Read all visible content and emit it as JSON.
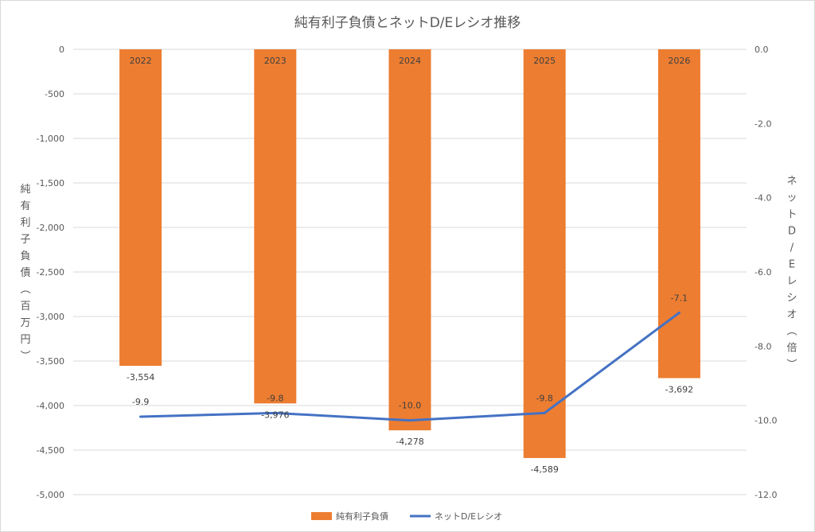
{
  "chart_data": {
    "type": "bar",
    "title": "純有利子負債とネットD/Eレシオ推移",
    "categories": [
      "2022",
      "2023",
      "2024",
      "2025",
      "2026"
    ],
    "series": [
      {
        "name": "純有利子負債",
        "type": "bar",
        "axis": "left",
        "color": "#ED7D31",
        "values": [
          -3554,
          -3976,
          -4278,
          -4589,
          -3692
        ],
        "labels": [
          "-3,554",
          "-3,976",
          "-4,278",
          "-4,589",
          "-3,692"
        ]
      },
      {
        "name": "ネットD/Eレシオ",
        "type": "line",
        "axis": "right",
        "color": "#4472C4",
        "values": [
          -9.9,
          -9.8,
          -10.0,
          -9.8,
          -7.1
        ],
        "labels": [
          "-9.9",
          "-9.8",
          "-10.0",
          "-9.8",
          "-7.1"
        ]
      }
    ],
    "ylabel": "純有利子負債（百万円）",
    "y2label": "ネットD/Eレシオ（倍）",
    "ylim": [
      -5000,
      0
    ],
    "y2lim": [
      -12,
      0
    ],
    "yticks": [
      "0",
      "-500",
      "-1,000",
      "-1,500",
      "-2,000",
      "-2,500",
      "-3,000",
      "-3,500",
      "-4,000",
      "-4,500",
      "-5,000"
    ],
    "y2ticks": [
      "0.0",
      "-2.0",
      "-4.0",
      "-6.0",
      "-8.0",
      "-10.0",
      "-12.0"
    ],
    "grid": true,
    "legend_position": "bottom"
  }
}
